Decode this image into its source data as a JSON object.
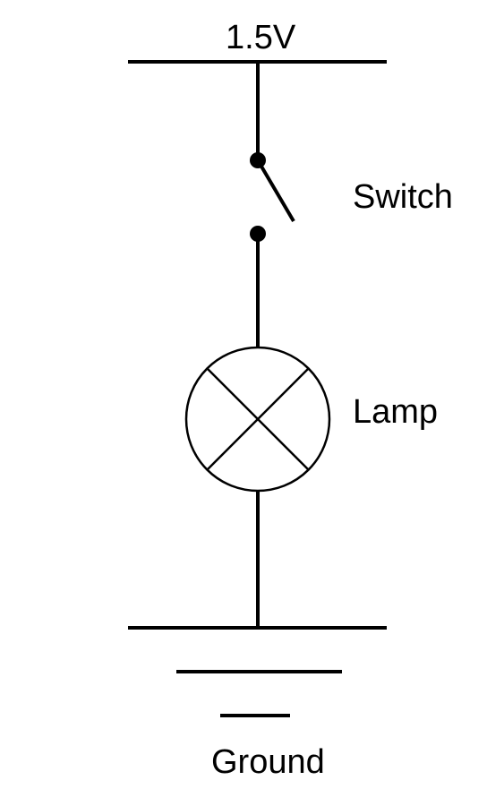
{
  "labels": {
    "supply": "1.5V",
    "switch": "Switch",
    "lamp": "Lamp",
    "ground": "Ground"
  },
  "colors": {
    "wire": "#000000",
    "background": "#ffffff"
  }
}
